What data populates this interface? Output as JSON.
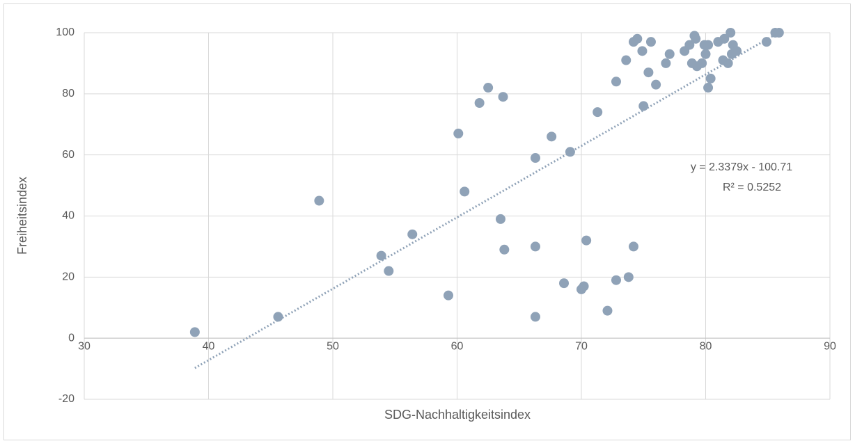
{
  "chart_data": {
    "type": "scatter",
    "xlabel": "SDG-Nachhaltigkeitsindex",
    "ylabel": "Freiheitsindex",
    "color": "#8fa2b7",
    "x": [
      38.9,
      45.6,
      48.9,
      53.9,
      54.5,
      56.4,
      59.3,
      60.1,
      60.6,
      61.8,
      62.5,
      63.5,
      63.7,
      63.8,
      66.3,
      66.3,
      66.3,
      67.6,
      68.6,
      69.1,
      70.0,
      70.2,
      70.4,
      71.3,
      72.1,
      72.8,
      72.8,
      73.6,
      73.8,
      74.2,
      74.2,
      74.5,
      74.9,
      75.0,
      75.4,
      75.6,
      76.0,
      76.8,
      77.1,
      78.3,
      78.7,
      78.9,
      79.1,
      79.2,
      79.3,
      79.7,
      79.9,
      80.0,
      80.2,
      80.2,
      80.4,
      81.0,
      81.4,
      81.5,
      81.8,
      82.0,
      82.1,
      82.2,
      82.5,
      84.9,
      85.6,
      85.9
    ],
    "values": [
      2,
      7,
      45,
      27,
      22,
      34,
      14,
      67,
      48,
      77,
      82,
      39,
      79,
      29,
      30,
      59,
      7,
      66,
      18,
      61,
      16,
      17,
      32,
      74,
      9,
      84,
      19,
      91,
      20,
      30,
      97,
      98,
      94,
      76,
      87,
      97,
      83,
      90,
      93,
      94,
      96,
      90,
      99,
      98,
      89,
      90,
      96,
      93,
      96,
      82,
      85,
      97,
      91,
      98,
      90,
      100,
      93,
      96,
      94,
      97,
      100,
      100
    ],
    "xlim": [
      30,
      90
    ],
    "xticks": [
      30,
      40,
      50,
      60,
      70,
      80,
      90
    ],
    "ylim": [
      -20,
      100
    ],
    "yticks": [
      -20,
      0,
      20,
      40,
      60,
      80,
      100
    ],
    "grid": true,
    "trendline": {
      "slope": 2.3379,
      "intercept": -100.71,
      "label": "y = 2.3379x - 100.71",
      "r2_label": "R² = 0.5252"
    }
  }
}
